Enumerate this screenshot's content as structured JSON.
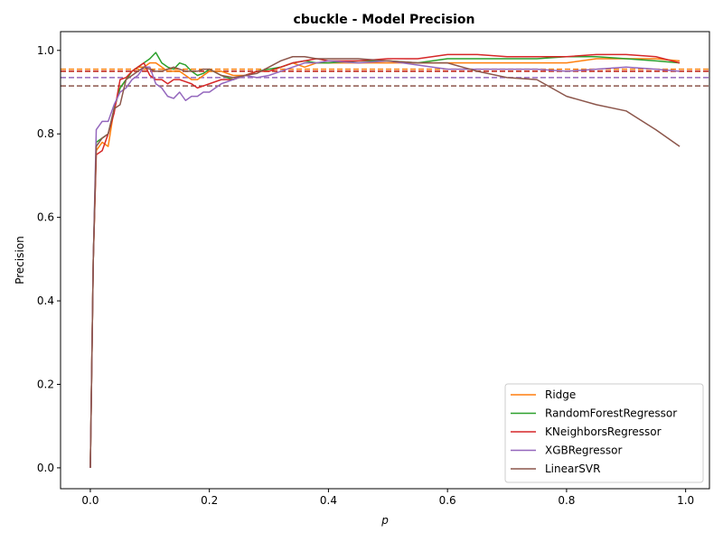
{
  "chart_data": {
    "type": "line",
    "title": "cbuckle - Model Precision",
    "xlabel": "p",
    "ylabel": "Precision",
    "xlim": [
      -0.05,
      1.04
    ],
    "ylim": [
      -0.05,
      1.045
    ],
    "xticks": [
      0.0,
      0.2,
      0.4,
      0.6,
      0.8,
      1.0
    ],
    "xtick_labels": [
      "0.0",
      "0.2",
      "0.4",
      "0.6",
      "0.8",
      "1.0"
    ],
    "yticks": [
      0.0,
      0.2,
      0.4,
      0.6,
      0.8,
      1.0
    ],
    "ytick_labels": [
      "0.0",
      "0.2",
      "0.4",
      "0.6",
      "0.8",
      "1.0"
    ],
    "grid": false,
    "legend_position": "lower-right",
    "x": [
      0.0,
      0.005,
      0.01,
      0.02,
      0.03,
      0.04,
      0.05,
      0.06,
      0.07,
      0.08,
      0.09,
      0.1,
      0.11,
      0.12,
      0.13,
      0.14,
      0.15,
      0.16,
      0.17,
      0.18,
      0.19,
      0.2,
      0.22,
      0.24,
      0.26,
      0.28,
      0.3,
      0.32,
      0.34,
      0.36,
      0.38,
      0.4,
      0.45,
      0.5,
      0.55,
      0.6,
      0.65,
      0.7,
      0.75,
      0.8,
      0.85,
      0.9,
      0.95,
      0.99
    ],
    "series": [
      {
        "name": "Ridge",
        "color": "#ff7f0e",
        "values": [
          0.0,
          0.5,
          0.76,
          0.78,
          0.77,
          0.86,
          0.91,
          0.93,
          0.95,
          0.96,
          0.96,
          0.97,
          0.97,
          0.96,
          0.95,
          0.95,
          0.95,
          0.94,
          0.93,
          0.93,
          0.94,
          0.95,
          0.95,
          0.94,
          0.94,
          0.95,
          0.95,
          0.96,
          0.97,
          0.96,
          0.97,
          0.97,
          0.97,
          0.97,
          0.97,
          0.97,
          0.97,
          0.97,
          0.97,
          0.97,
          0.98,
          0.98,
          0.98,
          0.975
        ],
        "reference": 0.955
      },
      {
        "name": "RandomForestRegressor",
        "color": "#2ca02c",
        "values": [
          0.0,
          0.5,
          0.78,
          0.79,
          0.8,
          0.86,
          0.91,
          0.93,
          0.95,
          0.96,
          0.97,
          0.98,
          0.995,
          0.97,
          0.96,
          0.955,
          0.97,
          0.965,
          0.95,
          0.94,
          0.945,
          0.955,
          0.94,
          0.93,
          0.94,
          0.95,
          0.955,
          0.96,
          0.97,
          0.975,
          0.97,
          0.97,
          0.975,
          0.975,
          0.97,
          0.98,
          0.98,
          0.98,
          0.98,
          0.985,
          0.985,
          0.98,
          0.975,
          0.97
        ],
        "reference": 0.95
      },
      {
        "name": "KNeighborsRegressor",
        "color": "#d62728",
        "values": [
          0.0,
          0.5,
          0.75,
          0.76,
          0.8,
          0.85,
          0.93,
          0.935,
          0.95,
          0.96,
          0.97,
          0.94,
          0.93,
          0.93,
          0.92,
          0.93,
          0.93,
          0.925,
          0.92,
          0.91,
          0.915,
          0.92,
          0.93,
          0.93,
          0.94,
          0.95,
          0.95,
          0.96,
          0.97,
          0.975,
          0.98,
          0.975,
          0.975,
          0.98,
          0.98,
          0.99,
          0.99,
          0.985,
          0.985,
          0.985,
          0.99,
          0.99,
          0.985,
          0.97
        ],
        "reference": 0.95
      },
      {
        "name": "XGBRegressor",
        "color": "#9467bd",
        "values": [
          0.0,
          0.5,
          0.81,
          0.83,
          0.83,
          0.87,
          0.9,
          0.91,
          0.93,
          0.94,
          0.96,
          0.96,
          0.92,
          0.91,
          0.89,
          0.885,
          0.9,
          0.88,
          0.89,
          0.89,
          0.9,
          0.9,
          0.92,
          0.93,
          0.94,
          0.935,
          0.94,
          0.95,
          0.96,
          0.97,
          0.97,
          0.975,
          0.97,
          0.975,
          0.965,
          0.955,
          0.955,
          0.955,
          0.955,
          0.95,
          0.955,
          0.96,
          0.955,
          0.95
        ],
        "reference": 0.935
      },
      {
        "name": "LinearSVR",
        "color": "#8c564b",
        "values": [
          0.0,
          0.5,
          0.77,
          0.79,
          0.8,
          0.86,
          0.87,
          0.93,
          0.94,
          0.95,
          0.96,
          0.955,
          0.95,
          0.95,
          0.955,
          0.96,
          0.955,
          0.95,
          0.95,
          0.95,
          0.955,
          0.955,
          0.94,
          0.935,
          0.94,
          0.945,
          0.96,
          0.975,
          0.985,
          0.985,
          0.98,
          0.98,
          0.98,
          0.975,
          0.97,
          0.97,
          0.95,
          0.935,
          0.93,
          0.89,
          0.87,
          0.855,
          0.81,
          0.77
        ],
        "reference": 0.915
      }
    ]
  }
}
